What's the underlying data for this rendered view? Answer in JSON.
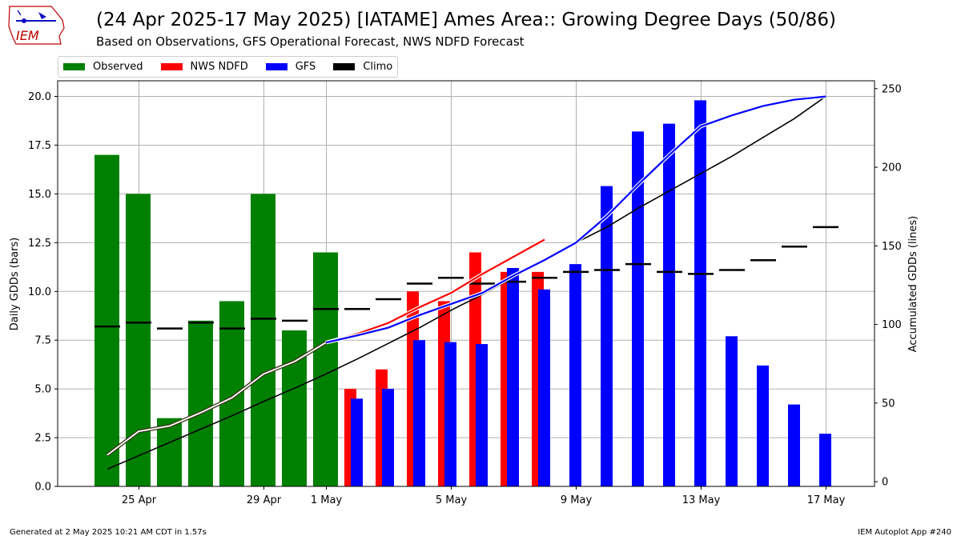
{
  "header": {
    "title": "(24 Apr 2025-17 May 2025) [IATAME] Ames Area:: Growing Degree Days (50/86)",
    "subtitle": "Based on Observations, GFS Operational Forecast, NWS NDFD Forecast",
    "logo_text": "IEM"
  },
  "footer": {
    "left": "Generated at 2 May 2025 10:21 AM CDT in 1.57s",
    "right": "IEM Autoplot App #240"
  },
  "colors": {
    "observed": "#008000",
    "ndfd": "#ff0000",
    "gfs": "#0000ff",
    "climo": "#000000",
    "grid": "#b0b0b0"
  },
  "chart_data": {
    "type": "bar",
    "xlabel": "",
    "ylabel": "Daily GDDs (bars)",
    "y2label": "Accumulated GDDs (lines)",
    "ylim": [
      0,
      20.8
    ],
    "y2lim": [
      -3,
      255
    ],
    "yticks": [
      0.0,
      2.5,
      5.0,
      7.5,
      10.0,
      12.5,
      15.0,
      17.5,
      20.0
    ],
    "ytick_labels": [
      "0.0",
      "2.5",
      "5.0",
      "7.5",
      "10.0",
      "12.5",
      "15.0",
      "17.5",
      "20.0"
    ],
    "y2ticks": [
      0,
      50,
      100,
      150,
      200,
      250
    ],
    "y2tick_labels": [
      "0",
      "50",
      "100",
      "150",
      "200",
      "250"
    ],
    "xticks": [
      {
        "day": 1,
        "label": "25 Apr"
      },
      {
        "day": 5,
        "label": "29 Apr"
      },
      {
        "day": 7,
        "label": "1 May"
      },
      {
        "day": 11,
        "label": "5 May"
      },
      {
        "day": 15,
        "label": "9 May"
      },
      {
        "day": 19,
        "label": "13 May"
      },
      {
        "day": 23,
        "label": "17 May"
      }
    ],
    "grid": true,
    "legend": {
      "placement": "top-left",
      "entries": [
        {
          "label": "Observed",
          "color": "#008000"
        },
        {
          "label": "NWS NDFD",
          "color": "#ff0000"
        },
        {
          "label": "GFS",
          "color": "#0000ff"
        },
        {
          "label": "Climo",
          "color": "#000000"
        }
      ]
    },
    "observed": {
      "days": [
        0,
        1,
        2,
        3,
        4,
        5,
        6,
        7
      ],
      "values": [
        17.0,
        15.0,
        3.5,
        8.5,
        9.5,
        15.0,
        8.0,
        12.0
      ]
    },
    "ndfd": {
      "days": [
        8,
        9,
        10,
        11,
        12,
        13,
        14
      ],
      "values": [
        5.0,
        6.0,
        10.0,
        9.5,
        12.0,
        11.0,
        11.0
      ]
    },
    "gfs": {
      "days": [
        8,
        9,
        10,
        11,
        12,
        13,
        14,
        15,
        16,
        17,
        18,
        19,
        20,
        21,
        22,
        23
      ],
      "values": [
        4.5,
        5.0,
        7.5,
        7.4,
        7.3,
        11.2,
        10.1,
        11.4,
        15.4,
        18.2,
        18.6,
        19.8,
        7.7,
        6.2,
        4.2,
        2.7
      ]
    },
    "climo_daily": {
      "days": [
        0,
        1,
        2,
        3,
        4,
        5,
        6,
        7,
        8,
        9,
        10,
        11,
        12,
        13,
        14,
        15,
        16,
        17,
        18,
        19,
        20,
        21,
        22,
        23
      ],
      "values": [
        8.2,
        8.4,
        8.1,
        8.4,
        8.1,
        8.6,
        8.5,
        9.1,
        9.1,
        9.6,
        10.4,
        10.7,
        10.4,
        10.5,
        10.7,
        11.0,
        11.1,
        11.4,
        11.0,
        10.9,
        11.1,
        11.6,
        12.3,
        13.3
      ]
    },
    "accum_observed": {
      "days": [
        0,
        1,
        2,
        3,
        4,
        5,
        6,
        7
      ],
      "values": [
        17,
        32,
        35.5,
        44,
        53.5,
        68.5,
        76.5,
        88.5
      ]
    },
    "accum_ndfd": {
      "days": [
        7,
        8,
        9,
        10,
        11,
        12,
        13,
        14
      ],
      "values": [
        88.5,
        94,
        101,
        111,
        120,
        132,
        143,
        154
      ]
    },
    "accum_gfs": {
      "days": [
        7,
        8,
        9,
        10,
        11,
        12,
        13,
        14,
        15,
        16,
        17,
        18,
        19,
        20,
        21,
        22,
        23
      ],
      "values": [
        88.5,
        93,
        98,
        106,
        113,
        120,
        131,
        141,
        152,
        169,
        189,
        208,
        226,
        233,
        239,
        243,
        245
      ]
    },
    "accum_climo": {
      "days": [
        0,
        1,
        2,
        3,
        4,
        5,
        6,
        7,
        8,
        9,
        10,
        11,
        12,
        13,
        14,
        15,
        16,
        17,
        18,
        19,
        20,
        21,
        22,
        23
      ],
      "values": [
        8,
        16.5,
        25,
        33.5,
        42,
        51,
        59.5,
        68.5,
        78,
        88,
        98,
        109,
        119,
        130,
        141,
        152,
        162,
        174,
        185,
        196,
        207,
        219,
        231,
        245
      ]
    }
  }
}
